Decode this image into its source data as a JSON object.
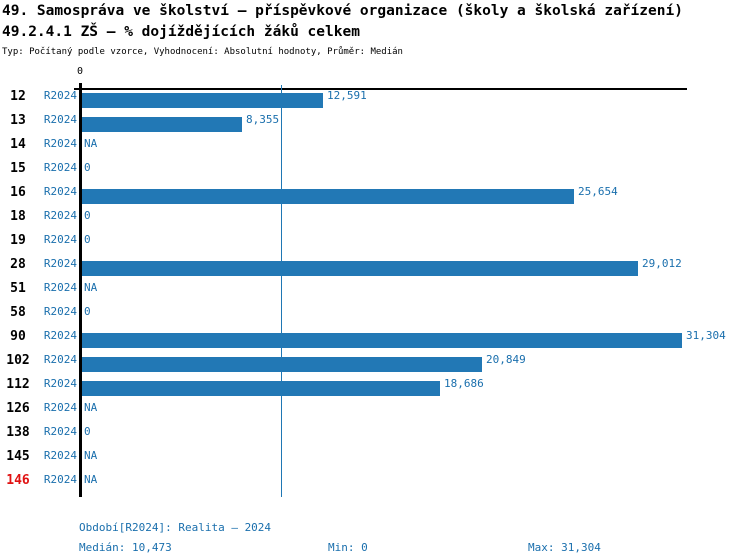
{
  "header": {
    "title_line1": "49. Samospráva ve školství – příspěvkové organizace (školy a školská zařízení)",
    "title_line2": "49.2.4.1 ZŠ – % dojíždějících žáků celkem",
    "subtitle": "Typ: Počítaný podle vzorce, Vyhodnocení: Absolutní hodnoty, Průměr: Medián"
  },
  "chart_data": {
    "type": "bar",
    "orientation": "horizontal",
    "series_label": "R2024",
    "axis": {
      "origin_tick_label": "0",
      "x_min": 0,
      "x_max": 31304,
      "median_value": 10473,
      "median_line": true,
      "grid": false
    },
    "categories": [
      "12",
      "13",
      "14",
      "15",
      "16",
      "18",
      "19",
      "28",
      "51",
      "58",
      "90",
      "102",
      "112",
      "126",
      "138",
      "145",
      "146"
    ],
    "rows": [
      {
        "id": "12",
        "value": 12591,
        "label": "12,591",
        "highlight": false
      },
      {
        "id": "13",
        "value": 8355,
        "label": "8,355",
        "highlight": false
      },
      {
        "id": "14",
        "value": null,
        "label": "NA",
        "highlight": false
      },
      {
        "id": "15",
        "value": 0,
        "label": "0",
        "highlight": false
      },
      {
        "id": "16",
        "value": 25654,
        "label": "25,654",
        "highlight": false
      },
      {
        "id": "18",
        "value": 0,
        "label": "0",
        "highlight": false
      },
      {
        "id": "19",
        "value": 0,
        "label": "0",
        "highlight": false
      },
      {
        "id": "28",
        "value": 29012,
        "label": "29,012",
        "highlight": false
      },
      {
        "id": "51",
        "value": null,
        "label": "NA",
        "highlight": false
      },
      {
        "id": "58",
        "value": 0,
        "label": "0",
        "highlight": false
      },
      {
        "id": "90",
        "value": 31304,
        "label": "31,304",
        "highlight": false
      },
      {
        "id": "102",
        "value": 20849,
        "label": "20,849",
        "highlight": false
      },
      {
        "id": "112",
        "value": 18686,
        "label": "18,686",
        "highlight": false
      },
      {
        "id": "126",
        "value": null,
        "label": "NA",
        "highlight": false
      },
      {
        "id": "138",
        "value": 0,
        "label": "0",
        "highlight": false
      },
      {
        "id": "145",
        "value": null,
        "label": "NA",
        "highlight": false
      },
      {
        "id": "146",
        "value": null,
        "label": "NA",
        "highlight": true
      }
    ]
  },
  "footer": {
    "period": "Období[R2024]: Realita – 2024",
    "median": "Medián: 10,473",
    "min": "Min: 0",
    "max": "Max: 31,304"
  },
  "colors": {
    "bar": "#2278b5",
    "text_blue": "#1a6fad",
    "highlight_red": "#e01212",
    "axis_black": "#000000",
    "background": "#ffffff"
  }
}
